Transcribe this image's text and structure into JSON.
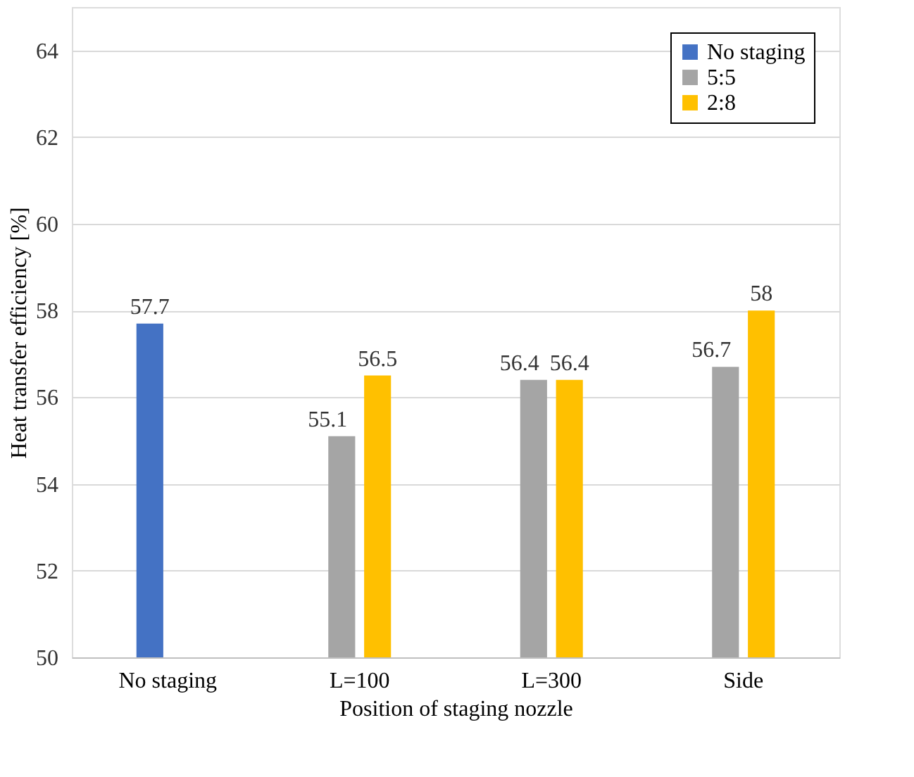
{
  "chart_data": {
    "type": "bar",
    "xlabel": "Position of staging nozzle",
    "ylabel": "Heat transfer efficiency [%]",
    "categories": [
      "No staging",
      "L=100",
      "L=300",
      "Side"
    ],
    "series": [
      {
        "name": "No staging",
        "color": "#4472c4",
        "values": [
          57.7,
          null,
          null,
          null
        ]
      },
      {
        "name": "5:5",
        "color": "#a5a5a5",
        "values": [
          null,
          55.1,
          56.4,
          56.7
        ]
      },
      {
        "name": "2:8",
        "color": "#ffc000",
        "values": [
          null,
          56.5,
          56.4,
          58
        ]
      }
    ],
    "ylim": [
      50,
      65
    ],
    "yticks": [
      50,
      52,
      54,
      56,
      58,
      60,
      62,
      64
    ],
    "grid": "y",
    "legend": "top right",
    "data_labels": true
  }
}
